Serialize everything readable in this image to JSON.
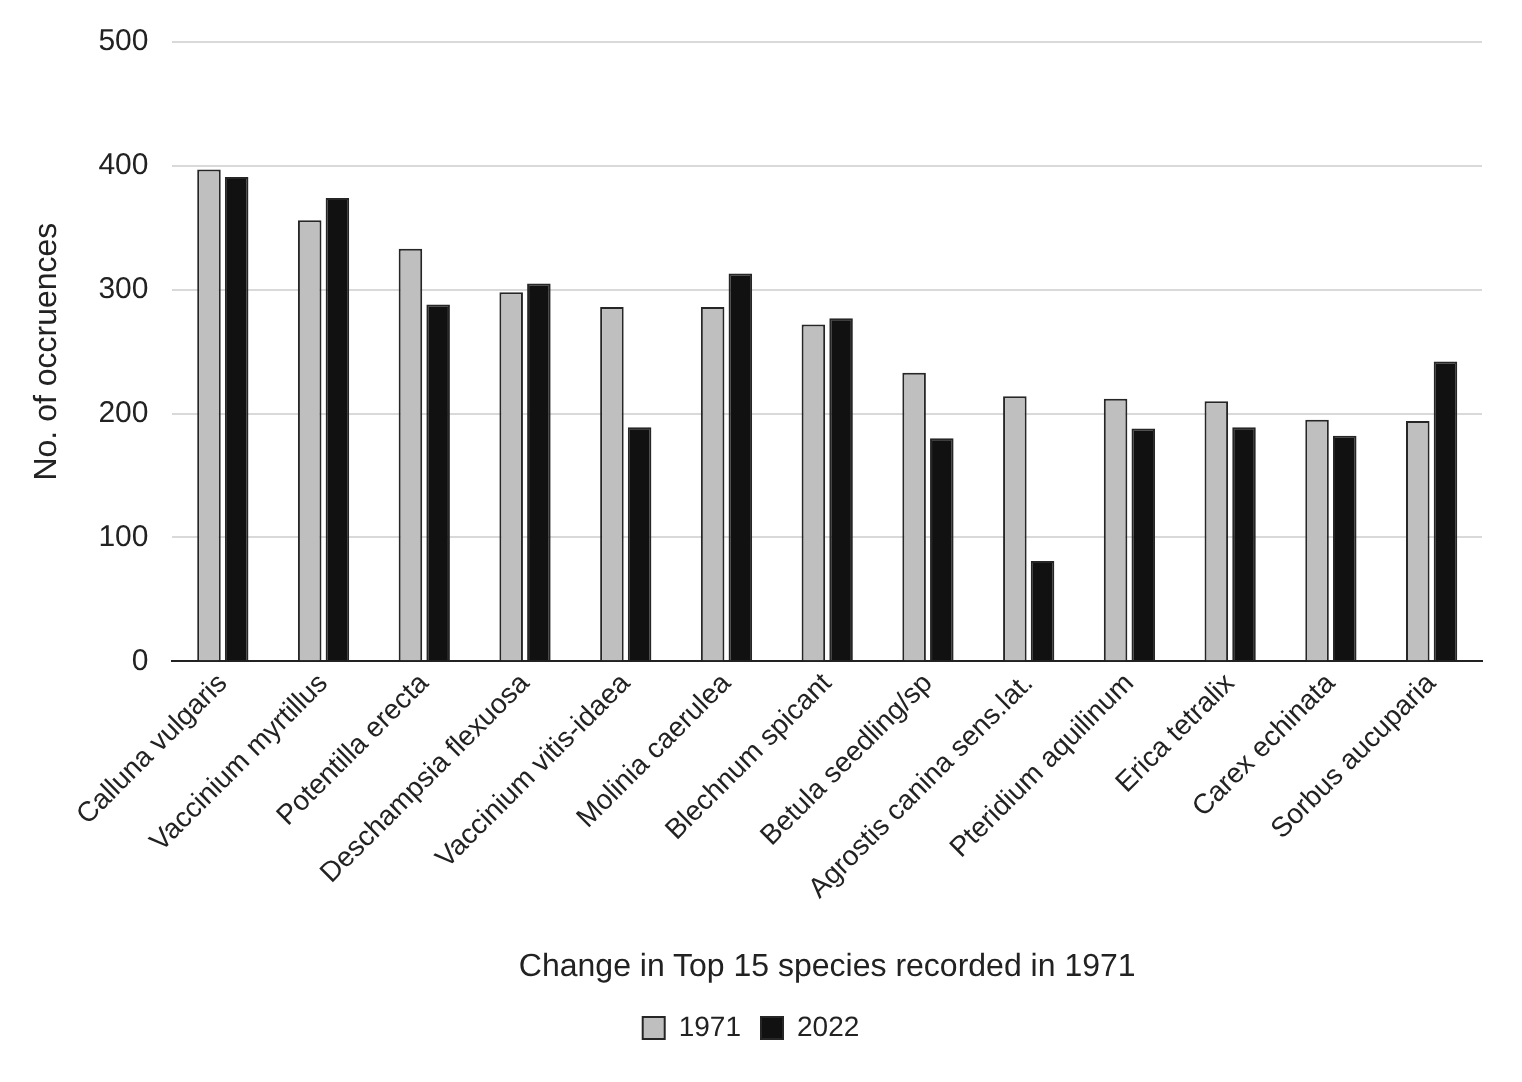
{
  "chart_data": {
    "type": "bar",
    "xlabel": "Change in Top 15 species recorded in 1971",
    "ylabel": "No. of occruences",
    "categories": [
      "Calluna vulgaris",
      "Vaccinium myrtillus",
      "Potentilla erecta",
      "Deschampsia flexuosa",
      "Vaccinium vitis-idaea",
      "Molinia caerulea",
      "Blechnum spicant",
      "Betula seedling/sp",
      "Agrostis canina sens.lat.",
      "Pteridium aquilinum",
      "Erica tetralix",
      "Carex echinata",
      "Sorbus aucuparia"
    ],
    "series": [
      {
        "name": "1971",
        "color": "#bfbfbf",
        "values": [
          397,
          356,
          333,
          298,
          286,
          286,
          272,
          233,
          214,
          212,
          210,
          195,
          194
        ]
      },
      {
        "name": "2022",
        "color": "#111111",
        "values": [
          391,
          374,
          288,
          305,
          189,
          313,
          277,
          180,
          81,
          188,
          189,
          182,
          242
        ]
      }
    ],
    "ylim": [
      0,
      500
    ],
    "yticks": [
      0,
      100,
      200,
      300,
      400,
      500
    ],
    "grid": "y",
    "legend": "bottom"
  }
}
